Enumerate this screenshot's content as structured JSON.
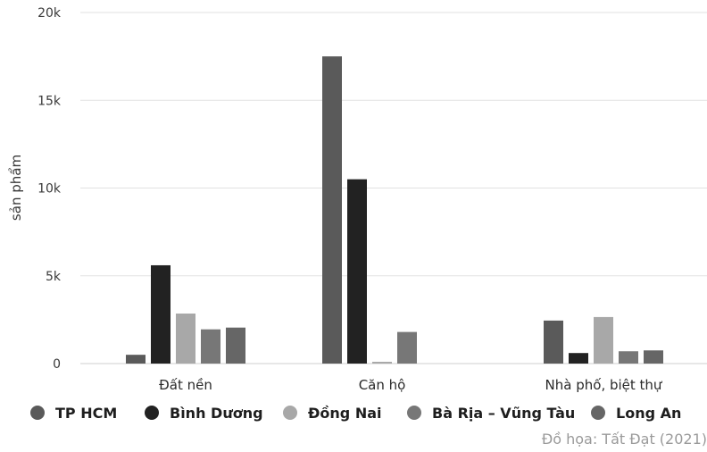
{
  "chart_data": {
    "type": "bar",
    "ylabel": "sản phẩm",
    "ylim": [
      0,
      20000
    ],
    "yticks": [
      0,
      5000,
      10000,
      15000,
      20000
    ],
    "ytick_labels": [
      "0",
      "5k",
      "10k",
      "15k",
      "20k"
    ],
    "grid": true,
    "legend_position": "bottom",
    "categories": [
      "Đất nền",
      "Căn hộ",
      "Nhà phố, biệt thự"
    ],
    "series": [
      {
        "name": "TP HCM",
        "color": "#5a5a5a",
        "values": [
          500,
          17500,
          2450
        ]
      },
      {
        "name": "Bình Dương",
        "color": "#222222",
        "values": [
          5600,
          10500,
          600
        ]
      },
      {
        "name": "Đồng Nai",
        "color": "#a8a8a8",
        "values": [
          2850,
          100,
          2650
        ]
      },
      {
        "name": "Bà Rịa – Vũng Tàu",
        "color": "#777777",
        "values": [
          1950,
          1800,
          700
        ]
      },
      {
        "name": "Long An",
        "color": "#666666",
        "values": [
          2050,
          0,
          750
        ]
      }
    ]
  },
  "credit": "Đồ họa: Tất Đạt (2021)"
}
